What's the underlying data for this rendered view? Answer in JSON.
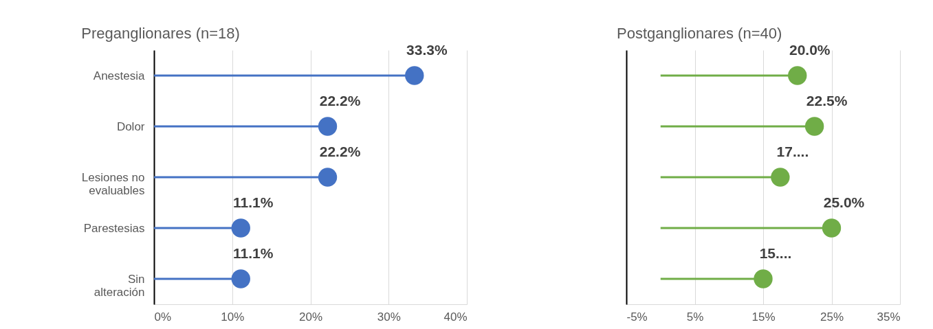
{
  "chart_data": [
    {
      "type": "lollipop",
      "title": "Preganglionares (n=18)",
      "orientation": "horizontal",
      "categories": [
        "Anestesia",
        "Dolor",
        "Lesiones no evaluables",
        "Parestesias",
        "Sin alteración"
      ],
      "values": [
        33.3,
        22.2,
        22.2,
        11.1,
        11.1
      ],
      "value_labels": [
        "33.3%",
        "22.2%",
        "22.2%",
        "11.1%",
        "11.1%"
      ],
      "color": "#4472c4",
      "marker": "circle",
      "grid": "x",
      "xlim": [
        0,
        40
      ],
      "xticks": [
        {
          "value": 0,
          "label": "0%"
        },
        {
          "value": 10,
          "label": "10%"
        },
        {
          "value": 20,
          "label": "20%"
        },
        {
          "value": 30,
          "label": "30%"
        },
        {
          "value": 40,
          "label": "40%"
        }
      ]
    },
    {
      "type": "lollipop",
      "title": "Postganglionares (n=40)",
      "orientation": "horizontal",
      "categories": [
        null,
        null,
        null,
        null,
        null
      ],
      "values": [
        20.0,
        22.5,
        17.5,
        25.0,
        15.0
      ],
      "value_labels": [
        "20.0%",
        "22.5%",
        "17....",
        "25.0%",
        "15...."
      ],
      "color": "#70ad47",
      "marker": "circle",
      "grid": "x",
      "xlim": [
        -5,
        35
      ],
      "xticks": [
        {
          "value": -5,
          "label": "-5%"
        },
        {
          "value": 5,
          "label": "5%"
        },
        {
          "value": 15,
          "label": "15%"
        },
        {
          "value": 25,
          "label": "25%"
        },
        {
          "value": 35,
          "label": "35%"
        }
      ]
    }
  ]
}
